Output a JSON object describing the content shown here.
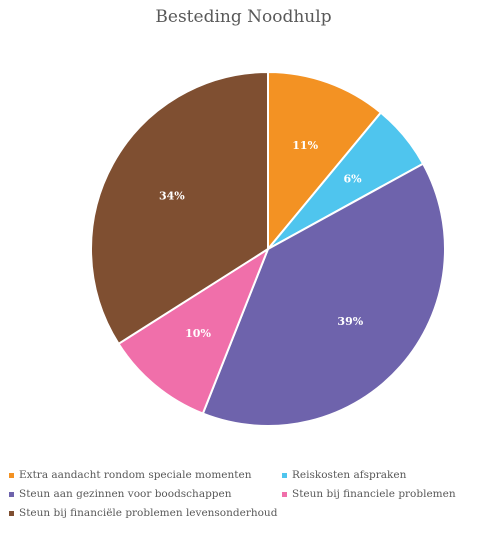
{
  "chart_data": {
    "type": "pie",
    "title": "Besteding Noodhulp",
    "legend_position": "bottom",
    "start_angle_deg": 0,
    "direction": "clockwise",
    "slices": [
      {
        "label": "Extra aandacht rondom speciale momenten",
        "value": 11,
        "value_label": "11%",
        "color": "#F39223"
      },
      {
        "label": "Reiskosten afspraken",
        "value": 6,
        "value_label": "6%",
        "color": "#4FC5EE"
      },
      {
        "label": "Steun aan gezinnen voor boodschappen",
        "value": 39,
        "value_label": "39%",
        "color": "#6E63AC"
      },
      {
        "label": "Steun bij financiele problemen",
        "value": 10,
        "value_label": "10%",
        "color": "#F06FAA"
      },
      {
        "label": "Steun bij financiële problemen levensonderhoud",
        "value": 34,
        "value_label": "34%",
        "color": "#7F4F31"
      }
    ]
  }
}
